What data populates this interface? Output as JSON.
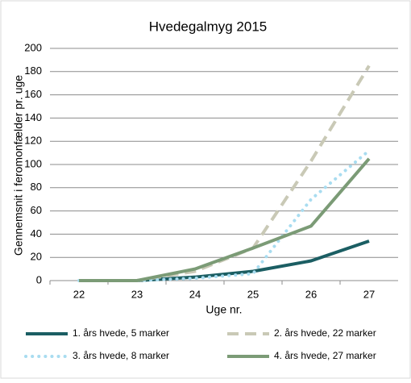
{
  "chart_data": {
    "type": "line",
    "title": "Hvedegalmyg 2015",
    "x_label": "Uge nr.",
    "y_label": "Gennemsnit i feromonfælder pr. uge",
    "categories": [
      "22",
      "23",
      "24",
      "25",
      "26",
      "27"
    ],
    "series": [
      {
        "name": "1. års hvede, 5 marker",
        "color": "#1b5e63",
        "style": "solid",
        "values": [
          0,
          0,
          3,
          8,
          17,
          34
        ]
      },
      {
        "name": "2. års hvede, 22 marker",
        "color": "#c9c9b6",
        "style": "dashed",
        "values": [
          0,
          0,
          8,
          28,
          103,
          185
        ]
      },
      {
        "name": "3. års hvede, 8 marker",
        "color": "#a8dcf0",
        "style": "dotted",
        "values": [
          0,
          0,
          2,
          6,
          70,
          112
        ]
      },
      {
        "name": "4. års hvede, 27 marker",
        "color": "#7b9b76",
        "style": "solid",
        "values": [
          0,
          0,
          10,
          28,
          47,
          105
        ]
      }
    ],
    "ylim": [
      0,
      200
    ],
    "yticks": [
      0,
      20,
      40,
      60,
      80,
      100,
      120,
      140,
      160,
      180,
      200
    ],
    "grid": true
  }
}
